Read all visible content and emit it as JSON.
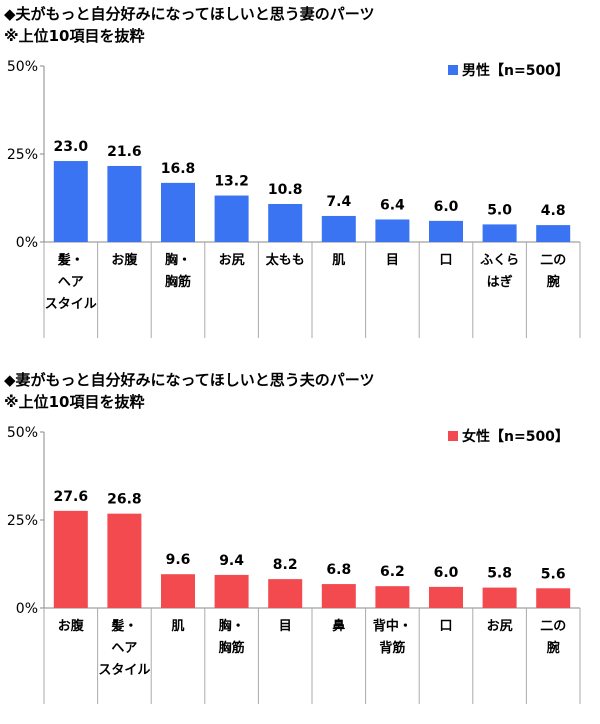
{
  "chart_data": [
    {
      "type": "bar",
      "title": "◆夫がもっと自分好みになってほしいと思う妻のパーツ",
      "subtitle": "※上位10項目を抜粋",
      "categories": [
        "髪・\nヘア\nスタイル",
        "お腹",
        "胸・\n胸筋",
        "お尻",
        "太もも",
        "肌",
        "目",
        "口",
        "ふくら\nはぎ",
        "二の\n腕"
      ],
      "series": [
        {
          "name": "男性【n=500】",
          "color": "#3A74F2",
          "values": [
            23.0,
            21.6,
            16.8,
            13.2,
            10.8,
            7.4,
            6.4,
            6.0,
            5.0,
            4.8
          ]
        }
      ],
      "value_labels": [
        "23.0",
        "21.6",
        "16.8",
        "13.2",
        "10.8",
        "7.4",
        "6.4",
        "6.0",
        "5.0",
        "4.8"
      ],
      "yticks": [
        0,
        25,
        50
      ],
      "ytick_labels": [
        "0%",
        "25%",
        "50%"
      ],
      "ylim": [
        0,
        50
      ],
      "legend_position": "top-right",
      "grid": false
    },
    {
      "type": "bar",
      "title": "◆妻がもっと自分好みになってほしいと思う夫のパーツ",
      "subtitle": "※上位10項目を抜粋",
      "categories": [
        "お腹",
        "髪・\nヘア\nスタイル",
        "肌",
        "胸・\n胸筋",
        "目",
        "鼻",
        "背中・\n背筋",
        "口",
        "お尻",
        "二の\n腕"
      ],
      "series": [
        {
          "name": "女性【n=500】",
          "color": "#F24A4F",
          "values": [
            27.6,
            26.8,
            9.6,
            9.4,
            8.2,
            6.8,
            6.2,
            6.0,
            5.8,
            5.6
          ]
        }
      ],
      "value_labels": [
        "27.6",
        "26.8",
        "9.6",
        "9.4",
        "8.2",
        "6.8",
        "6.2",
        "6.0",
        "5.8",
        "5.6"
      ],
      "yticks": [
        0,
        25,
        50
      ],
      "ytick_labels": [
        "0%",
        "25%",
        "50%"
      ],
      "ylim": [
        0,
        50
      ],
      "legend_position": "top-right",
      "grid": false
    }
  ]
}
